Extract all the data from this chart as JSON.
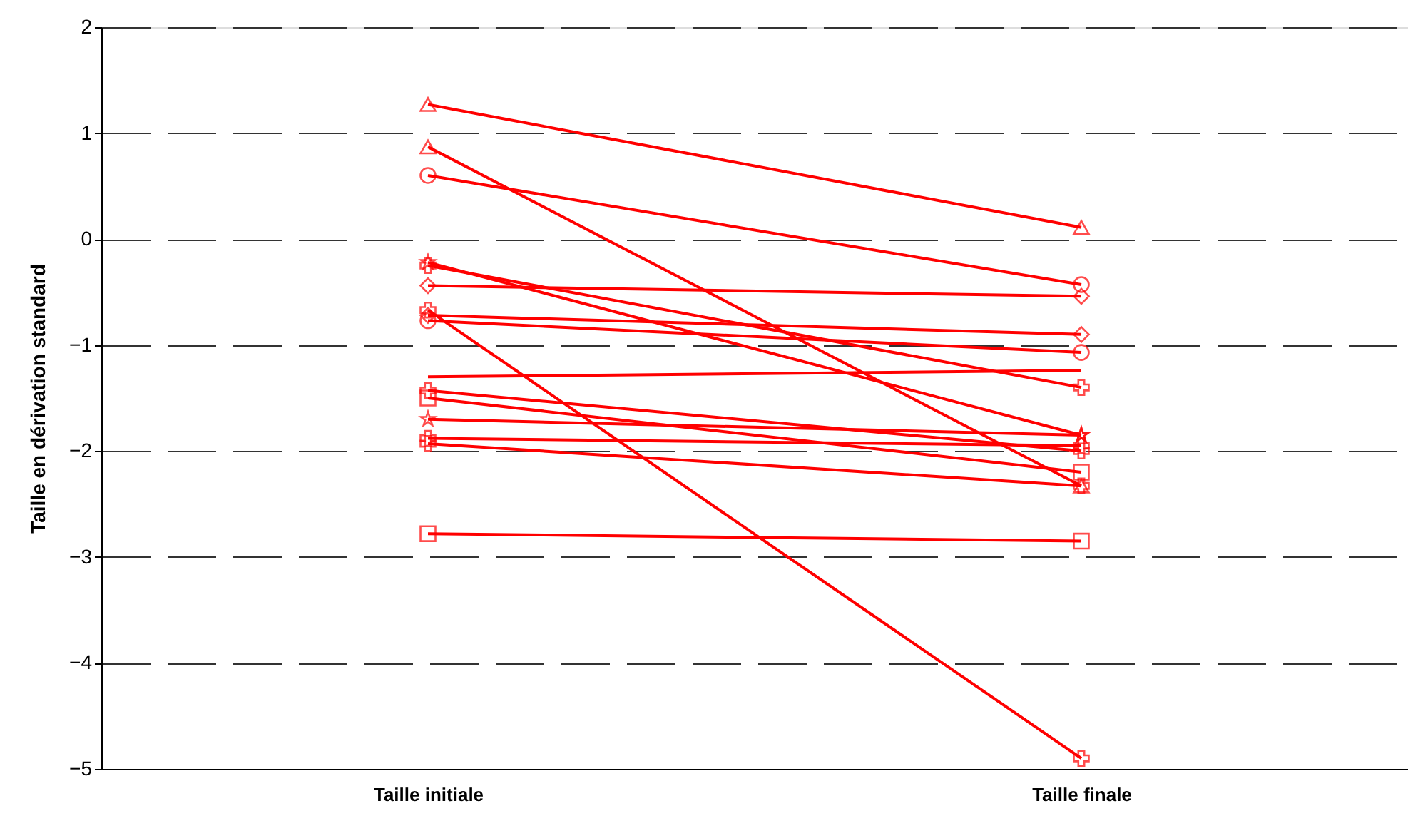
{
  "chart_data": {
    "type": "line",
    "ylabel": "Taille en dérivation standard",
    "categories": [
      "Taille initiale",
      "Taille finale"
    ],
    "ylim": [
      -5,
      2
    ],
    "yticks": [
      -5,
      -4,
      -3,
      -2,
      -1,
      0,
      1,
      2
    ],
    "grid": "y",
    "legend": false,
    "line_style": "solid",
    "series": [
      {
        "color": "#ff0000",
        "marker": "triangle",
        "values": [
          1.27,
          0.11
        ]
      },
      {
        "color": "#ff0000",
        "marker": "triangle",
        "values": [
          0.87,
          -2.33
        ]
      },
      {
        "color": "#ff0000",
        "marker": "circle",
        "values": [
          0.6,
          -0.43
        ]
      },
      {
        "color": "#ff0000",
        "marker": "diamond",
        "values": [
          -0.44,
          -0.54
        ]
      },
      {
        "color": "#ff0000",
        "marker": "diamond",
        "values": [
          -0.72,
          -0.9
        ]
      },
      {
        "color": "#ff0000",
        "marker": "circle",
        "values": [
          -0.77,
          -1.07
        ]
      },
      {
        "color": "#ff0000",
        "marker": "star",
        "values": [
          -0.22,
          -1.85
        ]
      },
      {
        "color": "#ff0000",
        "marker": "cross",
        "values": [
          -0.25,
          -1.4
        ]
      },
      {
        "color": "#ff0000",
        "marker": "cross",
        "values": [
          -0.67,
          -4.9
        ]
      },
      {
        "color": "#ff0000",
        "marker": "none",
        "values": [
          -1.3,
          -1.24
        ]
      },
      {
        "color": "#ff0000",
        "marker": "square",
        "values": [
          -1.5,
          -2.2
        ]
      },
      {
        "color": "#ff0000",
        "marker": "cross",
        "values": [
          -1.43,
          -2.0
        ]
      },
      {
        "color": "#ff0000",
        "marker": "star",
        "values": [
          -1.7,
          -1.85
        ]
      },
      {
        "color": "#ff0000",
        "marker": "cross",
        "values": [
          -1.93,
          -2.33
        ]
      },
      {
        "color": "#ff0000",
        "marker": "cross",
        "values": [
          -1.88,
          -1.95
        ]
      },
      {
        "color": "#ff0000",
        "marker": "square",
        "values": [
          -2.78,
          -2.85
        ]
      }
    ]
  }
}
